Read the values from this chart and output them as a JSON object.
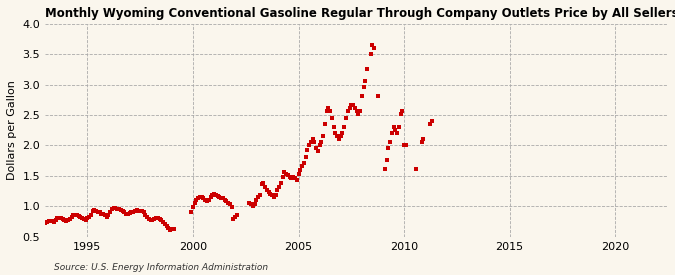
{
  "title": "Monthly Wyoming Conventional Gasoline Regular Through Company Outlets Price by All Sellers",
  "ylabel": "Dollars per Gallon",
  "source": "Source: U.S. Energy Information Administration",
  "dot_color": "#CC0000",
  "background_color": "#FAF6ED",
  "xlim": [
    1993.0,
    2022.5
  ],
  "ylim": [
    0.5,
    4.0
  ],
  "xticks": [
    1995,
    2000,
    2005,
    2010,
    2015,
    2020
  ],
  "yticks": [
    0.5,
    1.0,
    1.5,
    2.0,
    2.5,
    3.0,
    3.5,
    4.0
  ],
  "data": [
    [
      1993.0,
      0.72
    ],
    [
      1993.083,
      0.74
    ],
    [
      1993.167,
      0.75
    ],
    [
      1993.25,
      0.76
    ],
    [
      1993.333,
      0.75
    ],
    [
      1993.417,
      0.74
    ],
    [
      1993.5,
      0.78
    ],
    [
      1993.583,
      0.8
    ],
    [
      1993.667,
      0.81
    ],
    [
      1993.75,
      0.8
    ],
    [
      1993.833,
      0.79
    ],
    [
      1993.917,
      0.77
    ],
    [
      1994.0,
      0.76
    ],
    [
      1994.083,
      0.77
    ],
    [
      1994.167,
      0.79
    ],
    [
      1994.25,
      0.83
    ],
    [
      1994.333,
      0.86
    ],
    [
      1994.417,
      0.86
    ],
    [
      1994.5,
      0.85
    ],
    [
      1994.583,
      0.84
    ],
    [
      1994.667,
      0.82
    ],
    [
      1994.75,
      0.8
    ],
    [
      1994.833,
      0.79
    ],
    [
      1994.917,
      0.78
    ],
    [
      1995.0,
      0.8
    ],
    [
      1995.083,
      0.82
    ],
    [
      1995.167,
      0.85
    ],
    [
      1995.25,
      0.93
    ],
    [
      1995.333,
      0.94
    ],
    [
      1995.417,
      0.93
    ],
    [
      1995.5,
      0.91
    ],
    [
      1995.583,
      0.9
    ],
    [
      1995.667,
      0.88
    ],
    [
      1995.75,
      0.87
    ],
    [
      1995.833,
      0.85
    ],
    [
      1995.917,
      0.83
    ],
    [
      1996.0,
      0.86
    ],
    [
      1996.083,
      0.9
    ],
    [
      1996.167,
      0.95
    ],
    [
      1996.25,
      0.97
    ],
    [
      1996.333,
      0.97
    ],
    [
      1996.417,
      0.96
    ],
    [
      1996.5,
      0.95
    ],
    [
      1996.583,
      0.94
    ],
    [
      1996.667,
      0.92
    ],
    [
      1996.75,
      0.9
    ],
    [
      1996.833,
      0.88
    ],
    [
      1996.917,
      0.87
    ],
    [
      1997.0,
      0.89
    ],
    [
      1997.083,
      0.9
    ],
    [
      1997.167,
      0.91
    ],
    [
      1997.25,
      0.93
    ],
    [
      1997.333,
      0.94
    ],
    [
      1997.417,
      0.93
    ],
    [
      1997.5,
      0.93
    ],
    [
      1997.583,
      0.92
    ],
    [
      1997.667,
      0.9
    ],
    [
      1997.75,
      0.86
    ],
    [
      1997.833,
      0.82
    ],
    [
      1997.917,
      0.79
    ],
    [
      1998.0,
      0.77
    ],
    [
      1998.083,
      0.78
    ],
    [
      1998.167,
      0.79
    ],
    [
      1998.25,
      0.81
    ],
    [
      1998.333,
      0.81
    ],
    [
      1998.417,
      0.79
    ],
    [
      1998.5,
      0.77
    ],
    [
      1998.583,
      0.74
    ],
    [
      1998.667,
      0.71
    ],
    [
      1998.75,
      0.68
    ],
    [
      1998.833,
      0.64
    ],
    [
      1998.917,
      0.61
    ],
    [
      1999.0,
      0.62
    ],
    [
      1999.083,
      0.63
    ],
    [
      1999.917,
      0.91
    ],
    [
      2000.0,
      0.99
    ],
    [
      2000.083,
      1.06
    ],
    [
      2000.167,
      1.11
    ],
    [
      2000.25,
      1.13
    ],
    [
      2000.333,
      1.16
    ],
    [
      2000.417,
      1.16
    ],
    [
      2000.5,
      1.13
    ],
    [
      2000.583,
      1.11
    ],
    [
      2000.667,
      1.09
    ],
    [
      2000.75,
      1.11
    ],
    [
      2000.833,
      1.16
    ],
    [
      2000.917,
      1.19
    ],
    [
      2001.0,
      1.21
    ],
    [
      2001.083,
      1.19
    ],
    [
      2001.167,
      1.17
    ],
    [
      2001.25,
      1.16
    ],
    [
      2001.333,
      1.13
    ],
    [
      2001.417,
      1.13
    ],
    [
      2001.5,
      1.11
    ],
    [
      2001.583,
      1.09
    ],
    [
      2001.667,
      1.06
    ],
    [
      2001.75,
      1.03
    ],
    [
      2001.833,
      0.99
    ],
    [
      2001.917,
      0.79
    ],
    [
      2002.0,
      0.83
    ],
    [
      2002.083,
      0.85
    ],
    [
      2002.667,
      1.06
    ],
    [
      2002.75,
      1.04
    ],
    [
      2002.833,
      1.01
    ],
    [
      2002.917,
      1.03
    ],
    [
      2003.0,
      1.11
    ],
    [
      2003.083,
      1.16
    ],
    [
      2003.167,
      1.19
    ],
    [
      2003.25,
      1.36
    ],
    [
      2003.333,
      1.39
    ],
    [
      2003.417,
      1.31
    ],
    [
      2003.5,
      1.26
    ],
    [
      2003.583,
      1.23
    ],
    [
      2003.667,
      1.21
    ],
    [
      2003.75,
      1.19
    ],
    [
      2003.833,
      1.16
    ],
    [
      2003.917,
      1.19
    ],
    [
      2004.0,
      1.26
    ],
    [
      2004.083,
      1.31
    ],
    [
      2004.167,
      1.39
    ],
    [
      2004.25,
      1.49
    ],
    [
      2004.333,
      1.56
    ],
    [
      2004.417,
      1.53
    ],
    [
      2004.5,
      1.51
    ],
    [
      2004.583,
      1.49
    ],
    [
      2004.667,
      1.46
    ],
    [
      2004.75,
      1.49
    ],
    [
      2004.833,
      1.46
    ],
    [
      2004.917,
      1.43
    ],
    [
      2005.0,
      1.53
    ],
    [
      2005.083,
      1.59
    ],
    [
      2005.167,
      1.66
    ],
    [
      2005.25,
      1.71
    ],
    [
      2005.333,
      1.81
    ],
    [
      2005.417,
      1.93
    ],
    [
      2005.5,
      2.01
    ],
    [
      2005.583,
      2.06
    ],
    [
      2005.667,
      2.11
    ],
    [
      2005.75,
      2.06
    ],
    [
      2005.833,
      1.96
    ],
    [
      2005.917,
      1.91
    ],
    [
      2006.0,
      2.01
    ],
    [
      2006.083,
      2.06
    ],
    [
      2006.167,
      2.16
    ],
    [
      2006.25,
      2.36
    ],
    [
      2006.333,
      2.56
    ],
    [
      2006.417,
      2.61
    ],
    [
      2006.5,
      2.56
    ],
    [
      2006.583,
      2.46
    ],
    [
      2006.667,
      2.31
    ],
    [
      2006.75,
      2.21
    ],
    [
      2006.833,
      2.16
    ],
    [
      2006.917,
      2.11
    ],
    [
      2007.0,
      2.16
    ],
    [
      2007.083,
      2.21
    ],
    [
      2007.167,
      2.31
    ],
    [
      2007.25,
      2.46
    ],
    [
      2007.333,
      2.56
    ],
    [
      2007.417,
      2.61
    ],
    [
      2007.5,
      2.66
    ],
    [
      2007.583,
      2.66
    ],
    [
      2007.667,
      2.61
    ],
    [
      2007.75,
      2.56
    ],
    [
      2007.833,
      2.51
    ],
    [
      2007.917,
      2.56
    ],
    [
      2008.0,
      2.81
    ],
    [
      2008.083,
      2.96
    ],
    [
      2008.167,
      3.06
    ],
    [
      2008.25,
      3.25
    ],
    [
      2008.417,
      3.51
    ],
    [
      2008.5,
      3.66
    ],
    [
      2008.583,
      3.6
    ],
    [
      2008.75,
      2.81
    ],
    [
      2009.083,
      1.61
    ],
    [
      2009.167,
      1.76
    ],
    [
      2009.25,
      1.96
    ],
    [
      2009.333,
      2.06
    ],
    [
      2009.417,
      2.21
    ],
    [
      2009.5,
      2.31
    ],
    [
      2009.583,
      2.26
    ],
    [
      2009.667,
      2.21
    ],
    [
      2009.75,
      2.31
    ],
    [
      2009.833,
      2.51
    ],
    [
      2009.917,
      2.56
    ],
    [
      2010.0,
      2.01
    ],
    [
      2010.083,
      2.01
    ],
    [
      2010.583,
      1.61
    ],
    [
      2010.833,
      2.06
    ],
    [
      2010.917,
      2.11
    ],
    [
      2011.25,
      2.36
    ],
    [
      2011.333,
      2.41
    ]
  ]
}
